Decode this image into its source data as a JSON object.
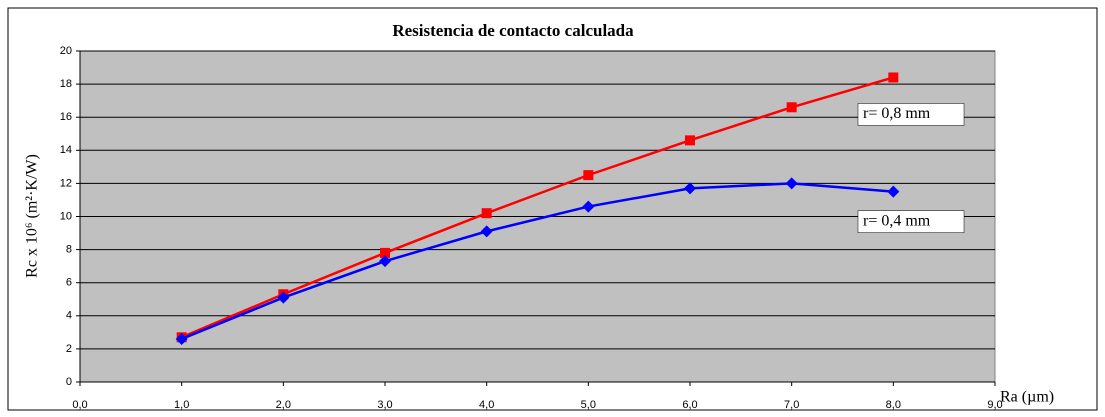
{
  "chart_data": {
    "type": "line",
    "title": "Resistencia de contacto calculada",
    "x_label": "Ra (µm)",
    "y_label": "Rc x 10⁶ (m²·K/W)",
    "x": [
      1,
      2,
      3,
      4,
      5,
      6,
      7,
      8
    ],
    "series": [
      {
        "name": "r= 0,8 mm",
        "color": "#ff0000",
        "marker": "square",
        "values": [
          2.7,
          5.3,
          7.8,
          10.2,
          12.5,
          14.6,
          16.6,
          18.4
        ]
      },
      {
        "name": "r= 0,4 mm",
        "color": "#0000ff",
        "marker": "diamond",
        "values": [
          2.6,
          5.1,
          7.3,
          9.1,
          10.6,
          11.7,
          12.0,
          11.5
        ]
      }
    ],
    "xlim": [
      0,
      9
    ],
    "xticks": [
      {
        "value": 0,
        "label": "0,0"
      },
      {
        "value": 1,
        "label": "1,0"
      },
      {
        "value": 2,
        "label": "2,0"
      },
      {
        "value": 3,
        "label": "3,0"
      },
      {
        "value": 4,
        "label": "4,0"
      },
      {
        "value": 5,
        "label": "5,0"
      },
      {
        "value": 6,
        "label": "6,0"
      },
      {
        "value": 7,
        "label": "7,0"
      },
      {
        "value": 8,
        "label": "8,0"
      },
      {
        "value": 9,
        "label": "9,0"
      }
    ],
    "ylim": [
      0,
      20
    ],
    "yticks": [
      0,
      2,
      4,
      6,
      8,
      10,
      12,
      14,
      16,
      18,
      20
    ],
    "grid": true
  }
}
